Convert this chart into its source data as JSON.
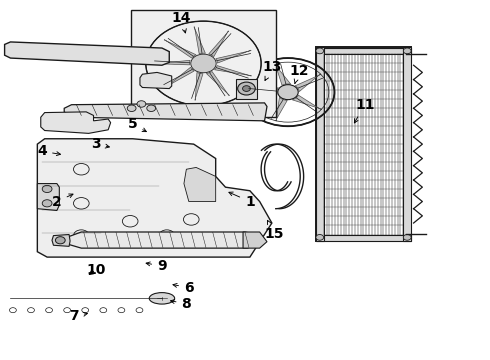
{
  "bg_color": "#ffffff",
  "line_color": "#1a1a1a",
  "label_color": "#000000",
  "label_fontsize": 10,
  "label_fontweight": "bold",
  "figure_width": 4.9,
  "figure_height": 3.6,
  "dpi": 100,
  "arrow_map": {
    "1": {
      "txt": [
        0.51,
        0.56
      ],
      "tgt": [
        0.46,
        0.53
      ]
    },
    "2": {
      "txt": [
        0.115,
        0.56
      ],
      "tgt": [
        0.155,
        0.535
      ]
    },
    "3": {
      "txt": [
        0.195,
        0.4
      ],
      "tgt": [
        0.23,
        0.41
      ]
    },
    "4": {
      "txt": [
        0.085,
        0.42
      ],
      "tgt": [
        0.13,
        0.43
      ]
    },
    "5": {
      "txt": [
        0.27,
        0.345
      ],
      "tgt": [
        0.305,
        0.37
      ]
    },
    "6": {
      "txt": [
        0.385,
        0.8
      ],
      "tgt": [
        0.345,
        0.79
      ]
    },
    "7": {
      "txt": [
        0.15,
        0.88
      ],
      "tgt": [
        0.185,
        0.87
      ]
    },
    "8": {
      "txt": [
        0.38,
        0.845
      ],
      "tgt": [
        0.34,
        0.835
      ]
    },
    "9": {
      "txt": [
        0.33,
        0.74
      ],
      "tgt": [
        0.29,
        0.73
      ]
    },
    "10": {
      "txt": [
        0.195,
        0.75
      ],
      "tgt": [
        0.175,
        0.77
      ]
    },
    "11": {
      "txt": [
        0.745,
        0.29
      ],
      "tgt": [
        0.72,
        0.35
      ]
    },
    "12": {
      "txt": [
        0.61,
        0.195
      ],
      "tgt": [
        0.6,
        0.24
      ]
    },
    "13": {
      "txt": [
        0.555,
        0.185
      ],
      "tgt": [
        0.54,
        0.225
      ]
    },
    "14": {
      "txt": [
        0.37,
        0.048
      ],
      "tgt": [
        0.38,
        0.1
      ]
    },
    "15": {
      "txt": [
        0.56,
        0.65
      ],
      "tgt": [
        0.545,
        0.61
      ]
    }
  }
}
